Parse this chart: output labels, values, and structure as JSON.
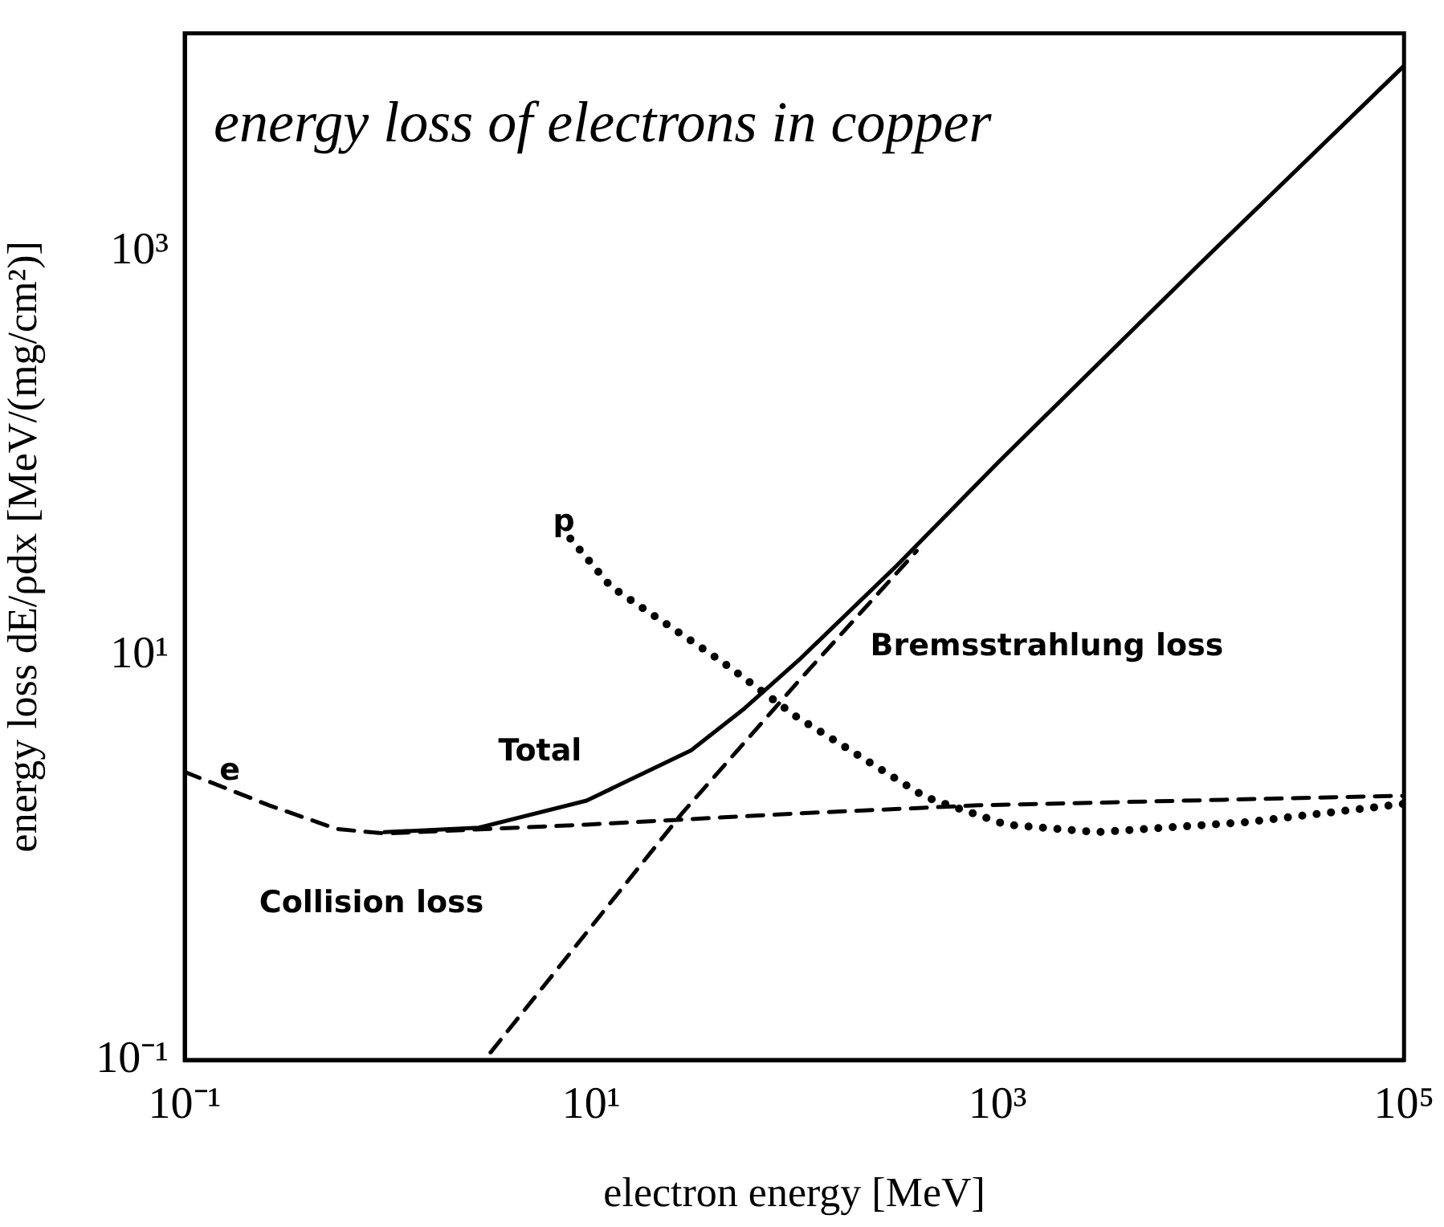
{
  "chart_data": {
    "type": "line",
    "title": "energy loss of electrons in copper",
    "xlabel": "electron energy [MeV]",
    "ylabel": "energy loss dE/ρdx [MeV/(mg/cm²)]",
    "log": "xy",
    "grid": false,
    "legend": false,
    "marker": "none",
    "xlim": [
      0.1,
      100000
    ],
    "ylim": [
      0.1,
      12000
    ],
    "xticks": [
      {
        "value": 0.1,
        "label": "10⁻¹"
      },
      {
        "value": 10,
        "label": "10¹"
      },
      {
        "value": 1000,
        "label": "10³"
      },
      {
        "value": 100000,
        "label": "10⁵"
      }
    ],
    "yticks": [
      {
        "value": 0.1,
        "label": "10⁻¹"
      },
      {
        "value": 10,
        "label": "10¹"
      },
      {
        "value": 1000,
        "label": "10³"
      }
    ],
    "series": [
      {
        "name": "Total",
        "color": "#000000",
        "line_style": "solid",
        "x": [
          0.96,
          2.8,
          9.5,
          31,
          57,
          105,
          320,
          1000,
          10000,
          100000
        ],
        "values": [
          1.34,
          1.41,
          1.92,
          3.4,
          5.5,
          9.5,
          28,
          90,
          880,
          8300
        ]
      },
      {
        "name": "Collision loss",
        "color": "#000000",
        "line_style": "dashed",
        "x": [
          0.1,
          0.26,
          0.56,
          0.96,
          9.5,
          105,
          805,
          100000
        ],
        "values": [
          2.66,
          1.82,
          1.39,
          1.32,
          1.46,
          1.66,
          1.82,
          2.03
        ]
      },
      {
        "name": "Bremsstrahlung loss",
        "color": "#000000",
        "line_style": "dashed",
        "x": [
          3.2,
          28,
          105,
          400
        ],
        "values": [
          0.109,
          1.66,
          7.5,
          33
        ]
      },
      {
        "name": "p",
        "color": "#000000",
        "line_style": "dotted",
        "x": [
          7.9,
          12.5,
          43,
          105,
          130,
          440,
          1100,
          3100,
          16600,
          100000
        ],
        "values": [
          38,
          22,
          9.5,
          4.9,
          4.3,
          2.0,
          1.46,
          1.34,
          1.5,
          1.85
        ]
      }
    ],
    "annotations": [
      "e"
    ]
  }
}
